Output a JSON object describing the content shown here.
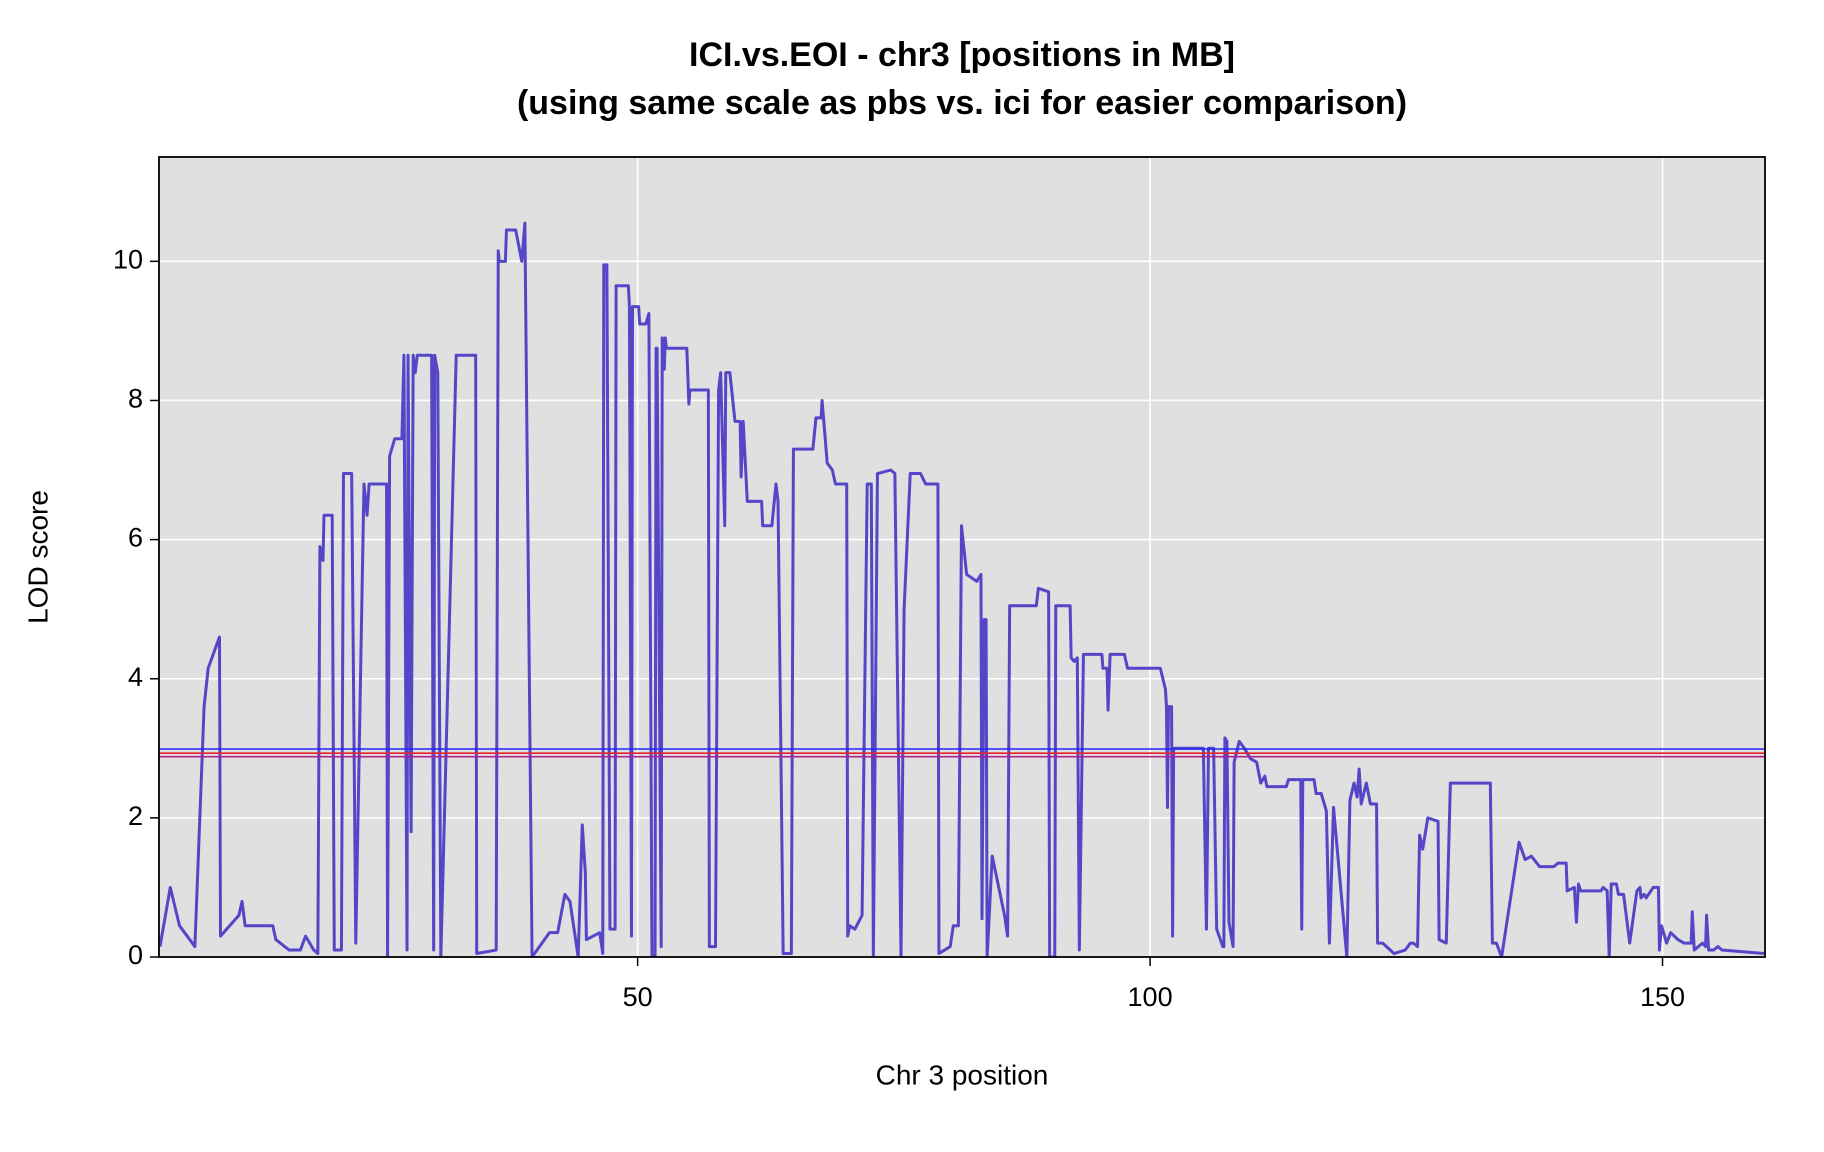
{
  "chart_data": {
    "type": "line",
    "title": [
      "ICI.vs.EOI - chr3 [positions in MB]",
      "(using same scale as pbs vs. ici for easier comparison)"
    ],
    "x_label": "Chr 3 position",
    "y_label": "LOD score",
    "xlim": [
      3.3,
      160
    ],
    "ylim": [
      0,
      11.5
    ],
    "xticks": [
      50,
      100,
      150
    ],
    "yticks": [
      0,
      2,
      4,
      6,
      8,
      10
    ],
    "grid": true,
    "background": "#e0e0e0",
    "x": [
      3.4,
      4.4,
      5.3,
      6.8,
      7.7,
      8.1,
      9.2,
      9.3,
      11.1,
      11.4,
      11.7,
      14.4,
      14.7,
      16.0,
      17.1,
      17.6,
      18.4,
      18.8,
      19.0,
      19.3,
      19.4,
      20.2,
      20.4,
      21.1,
      21.3,
      22.1,
      22.5,
      23.3,
      23.6,
      23.8,
      25.5,
      25.6,
      25.8,
      26.3,
      27.0,
      27.2,
      27.5,
      27.6,
      27.9,
      28.1,
      28.3,
      28.5,
      29.9,
      30.1,
      30.2,
      30.5,
      30.8,
      32.3,
      34.2,
      34.3,
      36.2,
      36.4,
      36.5,
      37.1,
      37.2,
      38.1,
      38.7,
      39.0,
      39.7,
      41.4,
      42.2,
      42.9,
      43.4,
      44.2,
      44.6,
      44.9,
      45.0,
      46.3,
      46.6,
      46.7,
      47.0,
      47.3,
      47.8,
      47.9,
      49.1,
      49.2,
      49.4,
      49.5,
      50.1,
      50.2,
      50.8,
      51.1,
      51.4,
      51.7,
      51.8,
      51.9,
      52.3,
      52.4,
      52.6,
      52.7,
      52.8,
      54.8,
      55.0,
      55.1,
      56.9,
      57.0,
      57.6,
      57.9,
      58.1,
      58.5,
      58.6,
      59.0,
      59.5,
      60.0,
      60.1,
      60.3,
      60.7,
      62.1,
      62.2,
      63.1,
      63.5,
      63.7,
      64.2,
      65.0,
      65.2,
      67.1,
      67.4,
      67.9,
      68.0,
      68.5,
      69.0,
      69.3,
      70.4,
      70.5,
      70.7,
      71.2,
      71.9,
      72.4,
      72.8,
      73.0,
      73.4,
      74.7,
      75.1,
      75.7,
      76.0,
      76.6,
      77.6,
      78.1,
      79.3,
      79.4,
      80.5,
      80.8,
      81.3,
      81.6,
      82.1,
      83.1,
      83.5,
      83.6,
      83.8,
      84.0,
      84.1,
      84.6,
      85.8,
      86.1,
      86.3,
      88.9,
      89.1,
      90.1,
      90.2,
      90.7,
      90.8,
      92.2,
      92.3,
      92.6,
      92.9,
      93.1,
      93.5,
      95.3,
      95.4,
      95.8,
      95.9,
      96.1,
      97.5,
      97.8,
      101.0,
      101.5,
      101.6,
      101.7,
      101.8,
      102.1,
      102.2,
      102.3,
      105.2,
      105.5,
      105.7,
      106.2,
      106.5,
      107.1,
      107.2,
      107.3,
      107.5,
      107.7,
      108.1,
      108.2,
      108.7,
      109.2,
      109.8,
      110.4,
      110.8,
      111.2,
      111.4,
      113.3,
      113.5,
      114.7,
      114.8,
      114.9,
      116.0,
      116.2,
      116.7,
      117.2,
      117.5,
      117.9,
      119.2,
      119.5,
      119.9,
      120.2,
      120.4,
      120.6,
      121.1,
      121.5,
      122.1,
      122.2,
      122.7,
      123.8,
      124.9,
      125.4,
      125.7,
      126.1,
      126.3,
      126.6,
      127.1,
      128.1,
      128.2,
      128.9,
      129.3,
      133.2,
      133.4,
      133.8,
      134.3,
      136.0,
      136.6,
      137.2,
      138.0,
      139.4,
      139.8,
      140.6,
      140.7,
      141.4,
      141.6,
      141.8,
      142.0,
      144.0,
      144.2,
      144.6,
      144.8,
      145.0,
      145.5,
      145.7,
      146.2,
      146.8,
      147.5,
      147.8,
      147.9,
      148.2,
      148.4,
      149.1,
      149.6,
      149.7,
      149.9,
      150.4,
      150.8,
      151.5,
      152.1,
      152.8,
      152.9,
      153.1,
      153.9,
      154.2,
      154.3,
      154.5,
      155.0,
      155.4,
      155.8,
      159.9
    ],
    "series": [
      {
        "color": "#5546c8",
        "values": [
          0.15,
          1.0,
          0.45,
          0.15,
          3.6,
          4.15,
          4.6,
          0.3,
          0.6,
          0.8,
          0.45,
          0.45,
          0.25,
          0.1,
          0.1,
          0.3,
          0.1,
          0.05,
          5.9,
          5.7,
          6.35,
          6.35,
          0.1,
          0.1,
          6.95,
          6.95,
          0.2,
          6.8,
          6.35,
          6.8,
          6.8,
          0,
          7.2,
          7.45,
          7.45,
          8.65,
          0.1,
          8.65,
          1.8,
          8.65,
          8.4,
          8.65,
          8.65,
          0.1,
          8.65,
          8.4,
          0,
          8.65,
          8.65,
          0.05,
          0.1,
          10.15,
          10,
          10,
          10.45,
          10.45,
          10,
          10.55,
          0,
          0.35,
          0.35,
          0.9,
          0.8,
          0,
          1.9,
          1.2,
          0.25,
          0.35,
          0.05,
          9.95,
          9.95,
          0.4,
          0.4,
          9.65,
          9.65,
          9.35,
          0.3,
          9.35,
          9.35,
          9.1,
          9.1,
          9.25,
          0,
          0,
          8.75,
          8.75,
          0.15,
          8.9,
          8.45,
          8.9,
          8.75,
          8.75,
          7.95,
          8.15,
          8.15,
          0.15,
          0.15,
          8.15,
          8.4,
          6.2,
          8.4,
          8.4,
          7.7,
          7.7,
          6.9,
          7.7,
          6.55,
          6.55,
          6.2,
          6.2,
          6.8,
          6.55,
          0.05,
          0.05,
          7.3,
          7.3,
          7.75,
          7.75,
          8,
          7.1,
          7,
          6.8,
          6.8,
          0.3,
          0.45,
          0.4,
          0.6,
          6.8,
          6.8,
          0,
          6.95,
          7,
          6.95,
          0,
          5,
          6.95,
          6.95,
          6.8,
          6.8,
          0.05,
          0.15,
          0.45,
          0.45,
          6.2,
          5.5,
          5.4,
          5.5,
          0.55,
          4.85,
          4.85,
          0,
          1.45,
          0.6,
          0.3,
          5.05,
          5.05,
          5.3,
          5.25,
          0,
          0,
          5.05,
          5.05,
          4.3,
          4.25,
          4.3,
          0.1,
          4.35,
          4.35,
          4.15,
          4.15,
          3.55,
          4.35,
          4.35,
          4.15,
          4.15,
          3.85,
          3.6,
          2.15,
          3.6,
          3.6,
          0.3,
          3,
          3,
          0.4,
          3,
          3,
          0.4,
          0.15,
          0.15,
          3.15,
          3.1,
          0.5,
          0.15,
          2.8,
          3.1,
          3.0,
          2.85,
          2.8,
          2.5,
          2.6,
          2.45,
          2.45,
          2.55,
          2.55,
          0.4,
          2.55,
          2.55,
          2.35,
          2.35,
          2.1,
          0.2,
          2.15,
          0,
          2.25,
          2.5,
          2.3,
          2.7,
          2.2,
          2.5,
          2.2,
          2.2,
          0.2,
          0.2,
          0.05,
          0.1,
          0.2,
          0.2,
          0.15,
          1.75,
          1.55,
          2.0,
          1.95,
          0.25,
          0.2,
          2.5,
          2.5,
          0.2,
          0.2,
          0,
          1.65,
          1.4,
          1.45,
          1.3,
          1.3,
          1.35,
          1.35,
          0.95,
          1.0,
          0.5,
          1.05,
          0.95,
          0.95,
          1.0,
          0.95,
          0,
          1.05,
          1.05,
          0.9,
          0.9,
          0.2,
          0.95,
          1.0,
          0.85,
          0.9,
          0.85,
          1.0,
          1.0,
          0.1,
          0.45,
          0.2,
          0.35,
          0.25,
          0.2,
          0.2,
          0.65,
          0.1,
          0.2,
          0.15,
          0.6,
          0.1,
          0.1,
          0.15,
          0.1,
          0.05
        ]
      }
    ],
    "thresholds": [
      {
        "value": 2.99,
        "color": "#2525ff"
      },
      {
        "value": 2.93,
        "color": "#e8202a"
      },
      {
        "value": 2.88,
        "color": "#b0208e"
      }
    ]
  }
}
